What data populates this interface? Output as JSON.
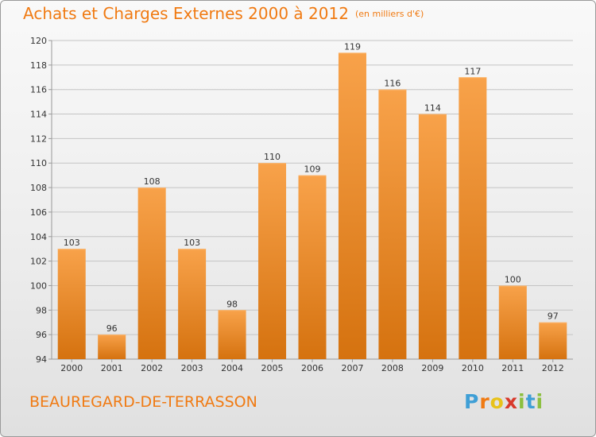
{
  "title": {
    "main": "Achats et Charges Externes 2000 à 2012",
    "unit": "(en milliers d'€)"
  },
  "town": "BEAUREGARD-DE-TERRASSON",
  "logo": {
    "letters": [
      "P",
      "r",
      "o",
      "x",
      "i",
      "t",
      "i"
    ],
    "colors": [
      "#3f9fd6",
      "#f07a12",
      "#e8c21a",
      "#d8392b",
      "#8cbf3f",
      "#3f9fd6",
      "#8cbf3f"
    ]
  },
  "colors": {
    "bar_top": "#f8a24a",
    "bar_bottom": "#d5720f",
    "accent": "#f07a12",
    "grid": "#c4c4c4",
    "axis_text": "#333333"
  },
  "chart_data": {
    "type": "bar",
    "title": "Achats et Charges Externes 2000 à 2012",
    "subtitle": "(en milliers d'€)",
    "categories": [
      "2000",
      "2001",
      "2002",
      "2003",
      "2004",
      "2005",
      "2006",
      "2007",
      "2008",
      "2009",
      "2010",
      "2011",
      "2012"
    ],
    "values": [
      103,
      96,
      108,
      103,
      98,
      110,
      109,
      119,
      116,
      114,
      117,
      100,
      97
    ],
    "ylim": [
      94,
      120
    ],
    "yticks": [
      94,
      96,
      98,
      100,
      102,
      104,
      106,
      108,
      110,
      112,
      114,
      116,
      118,
      120
    ],
    "grid": true,
    "data_labels": true,
    "legend": "none"
  }
}
